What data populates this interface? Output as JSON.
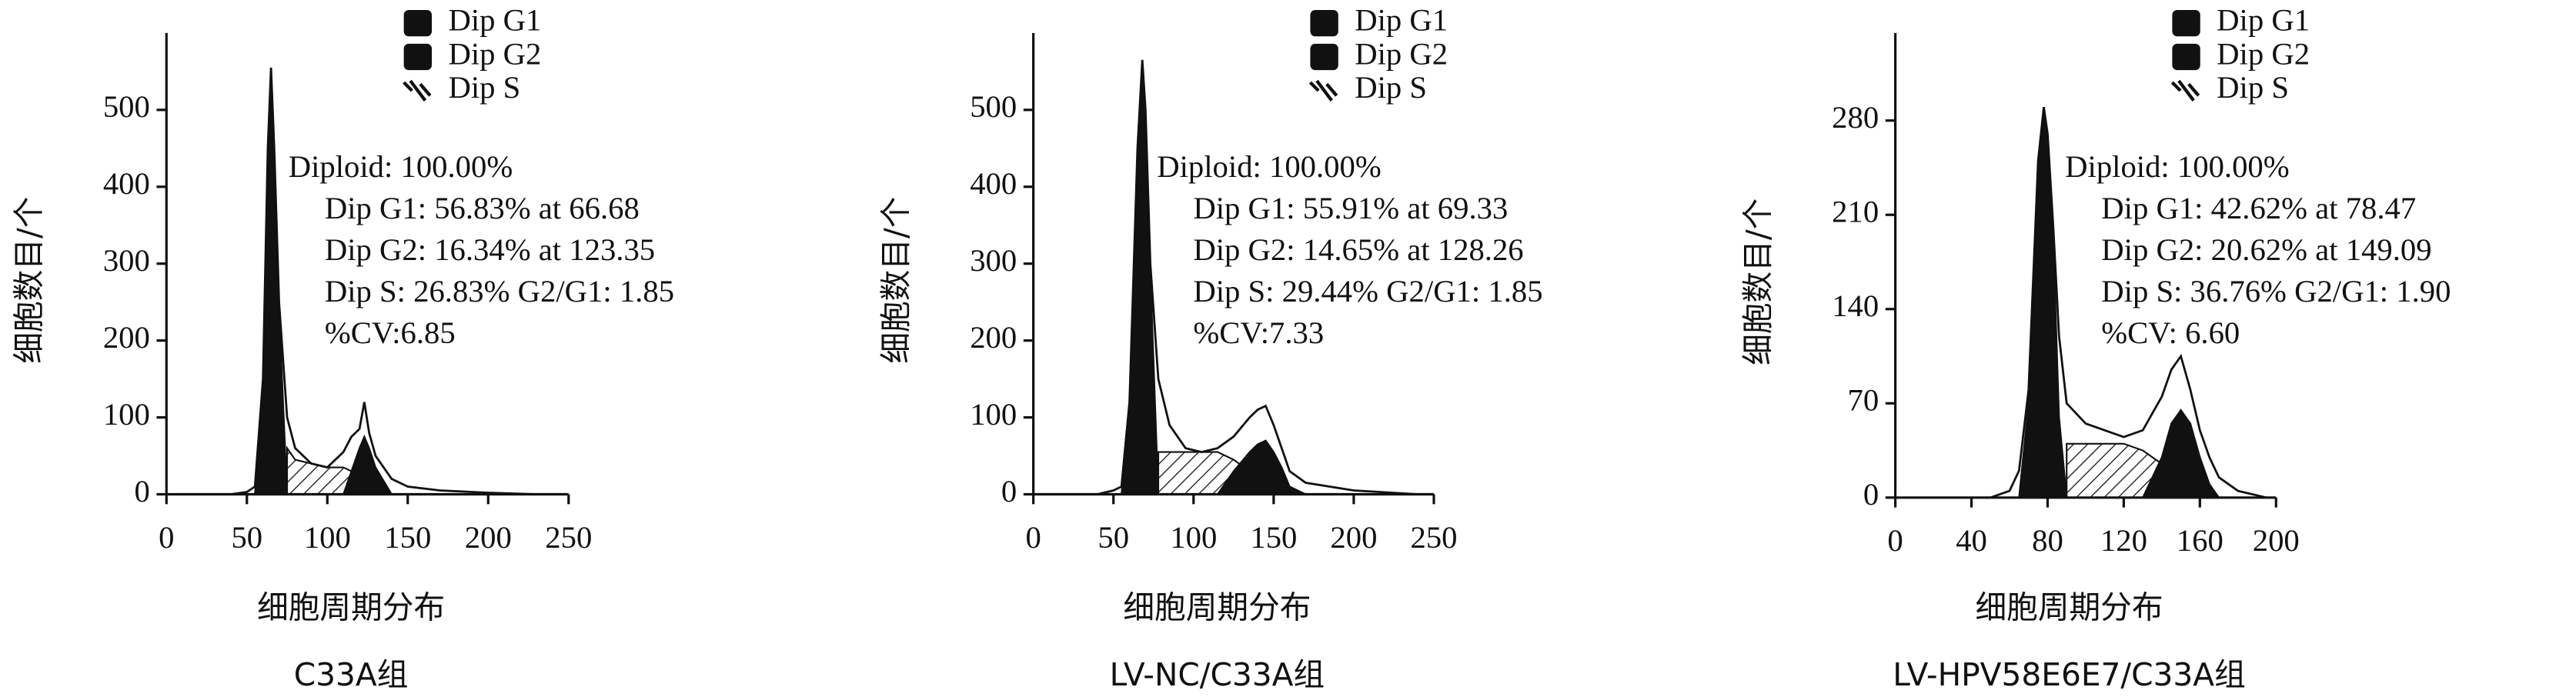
{
  "chart_data": [
    {
      "type": "area",
      "x_label": "细胞周期分布",
      "y_label": "细胞数目/个",
      "caption": "C33A组",
      "annotations": [
        "Diploid: 100.00%",
        "Dip G1: 56.83% at 66.68",
        "Dip G2: 16.34% at 123.35",
        "Dip S: 26.83%  G2/G1: 1.85",
        "%CV:6.85"
      ],
      "x": [
        40,
        50,
        55,
        60,
        63,
        65,
        67,
        70,
        75,
        80,
        90,
        100,
        110,
        115,
        120,
        123,
        126,
        130,
        140,
        150,
        170,
        200,
        230
      ],
      "values": [
        0,
        3,
        10,
        150,
        450,
        555,
        450,
        250,
        100,
        60,
        40,
        35,
        55,
        75,
        85,
        120,
        80,
        50,
        20,
        10,
        5,
        2,
        0
      ],
      "series": [
        {
          "name": "Dip G1",
          "color": "#111111",
          "values": [
            null,
            null,
            0,
            150,
            440,
            540,
            440,
            240,
            0,
            null,
            null,
            null,
            null,
            null,
            null,
            null,
            null,
            null,
            null,
            null,
            null,
            null,
            null
          ]
        },
        {
          "name": "Dip G2",
          "color": "#111111",
          "values": [
            null,
            null,
            null,
            null,
            null,
            null,
            null,
            null,
            null,
            null,
            null,
            null,
            0,
            30,
            60,
            75,
            60,
            35,
            0,
            null,
            null,
            null,
            null
          ]
        },
        {
          "name": "Dip S",
          "color": "#111111",
          "hatch": true,
          "values": [
            null,
            null,
            null,
            null,
            null,
            null,
            null,
            null,
            60,
            45,
            40,
            35,
            35,
            30,
            20,
            10,
            5,
            0,
            null,
            null,
            null,
            null,
            null
          ]
        }
      ],
      "xlim": [
        0,
        250
      ],
      "xticks": [
        0,
        50,
        100,
        150,
        200,
        250
      ],
      "ylim": [
        0,
        600
      ],
      "yticks": [
        0,
        100,
        200,
        300,
        400,
        500
      ]
    },
    {
      "type": "area",
      "x_label": "细胞周期分布",
      "y_label": "细胞数目/个",
      "caption": "LV-NC/C33A组",
      "annotations": [
        "Diploid: 100.00%",
        "Dip G1: 55.91% at 69.33",
        "Dip G2: 14.65% at 128.26",
        "Dip S: 29.44%  G2/G1: 1.85",
        "%CV:7.33"
      ],
      "x": [
        40,
        50,
        55,
        60,
        65,
        68,
        70,
        73,
        78,
        85,
        95,
        105,
        115,
        125,
        135,
        140,
        145,
        150,
        155,
        160,
        170,
        200,
        240
      ],
      "values": [
        0,
        5,
        10,
        120,
        450,
        565,
        500,
        300,
        150,
        90,
        60,
        55,
        60,
        75,
        100,
        110,
        115,
        90,
        60,
        30,
        15,
        5,
        0
      ],
      "series": [
        {
          "name": "Dip G1",
          "color": "#111111",
          "values": [
            null,
            null,
            0,
            120,
            440,
            550,
            490,
            290,
            0,
            null,
            null,
            null,
            null,
            null,
            null,
            null,
            null,
            null,
            null,
            null,
            null,
            null,
            null
          ]
        },
        {
          "name": "Dip G2",
          "color": "#111111",
          "values": [
            null,
            null,
            null,
            null,
            null,
            null,
            null,
            null,
            null,
            null,
            null,
            null,
            0,
            30,
            55,
            65,
            70,
            55,
            35,
            10,
            0,
            null,
            null
          ]
        },
        {
          "name": "Dip S",
          "color": "#111111",
          "hatch": true,
          "values": [
            null,
            null,
            null,
            null,
            null,
            null,
            null,
            null,
            55,
            55,
            55,
            55,
            55,
            45,
            30,
            20,
            10,
            0,
            null,
            null,
            null,
            null,
            null
          ]
        }
      ],
      "xlim": [
        0,
        250
      ],
      "xticks": [
        0,
        50,
        100,
        150,
        200,
        250
      ],
      "ylim": [
        0,
        600
      ],
      "yticks": [
        0,
        100,
        200,
        300,
        400,
        500
      ]
    },
    {
      "type": "area",
      "x_label": "细胞周期分布",
      "y_label": "细胞数目/个",
      "caption": "LV-HPV58E6E7/C33A组",
      "annotations": [
        "Diploid: 100.00%",
        "Dip G1: 42.62% at 78.47",
        "Dip G2: 20.62% at 149.09",
        "Dip S: 36.76%  G2/G1: 1.90",
        "%CV: 6.60"
      ],
      "x": [
        50,
        60,
        65,
        70,
        75,
        78,
        80,
        83,
        86,
        90,
        100,
        110,
        120,
        130,
        140,
        145,
        150,
        155,
        160,
        165,
        170,
        180,
        195
      ],
      "values": [
        0,
        5,
        20,
        80,
        250,
        290,
        270,
        200,
        120,
        70,
        55,
        50,
        45,
        50,
        75,
        95,
        105,
        80,
        50,
        30,
        15,
        5,
        0
      ],
      "series": [
        {
          "name": "Dip G1",
          "color": "#111111",
          "values": [
            null,
            null,
            0,
            70,
            240,
            285,
            265,
            190,
            60,
            0,
            null,
            null,
            null,
            null,
            null,
            null,
            null,
            null,
            null,
            null,
            null,
            null,
            null
          ]
        },
        {
          "name": "Dip G2",
          "color": "#111111",
          "values": [
            null,
            null,
            null,
            null,
            null,
            null,
            null,
            null,
            null,
            null,
            null,
            null,
            null,
            0,
            30,
            55,
            65,
            55,
            30,
            10,
            0,
            null,
            null
          ]
        },
        {
          "name": "Dip S",
          "color": "#111111",
          "hatch": true,
          "values": [
            null,
            null,
            null,
            null,
            null,
            null,
            null,
            null,
            null,
            40,
            40,
            40,
            40,
            35,
            25,
            15,
            5,
            0,
            null,
            null,
            null,
            null,
            null
          ]
        }
      ],
      "xlim": [
        0,
        200
      ],
      "xticks": [
        0,
        40,
        80,
        120,
        160,
        200
      ],
      "ylim": [
        0,
        345
      ],
      "yticks": [
        0,
        70,
        140,
        210,
        280
      ]
    }
  ]
}
